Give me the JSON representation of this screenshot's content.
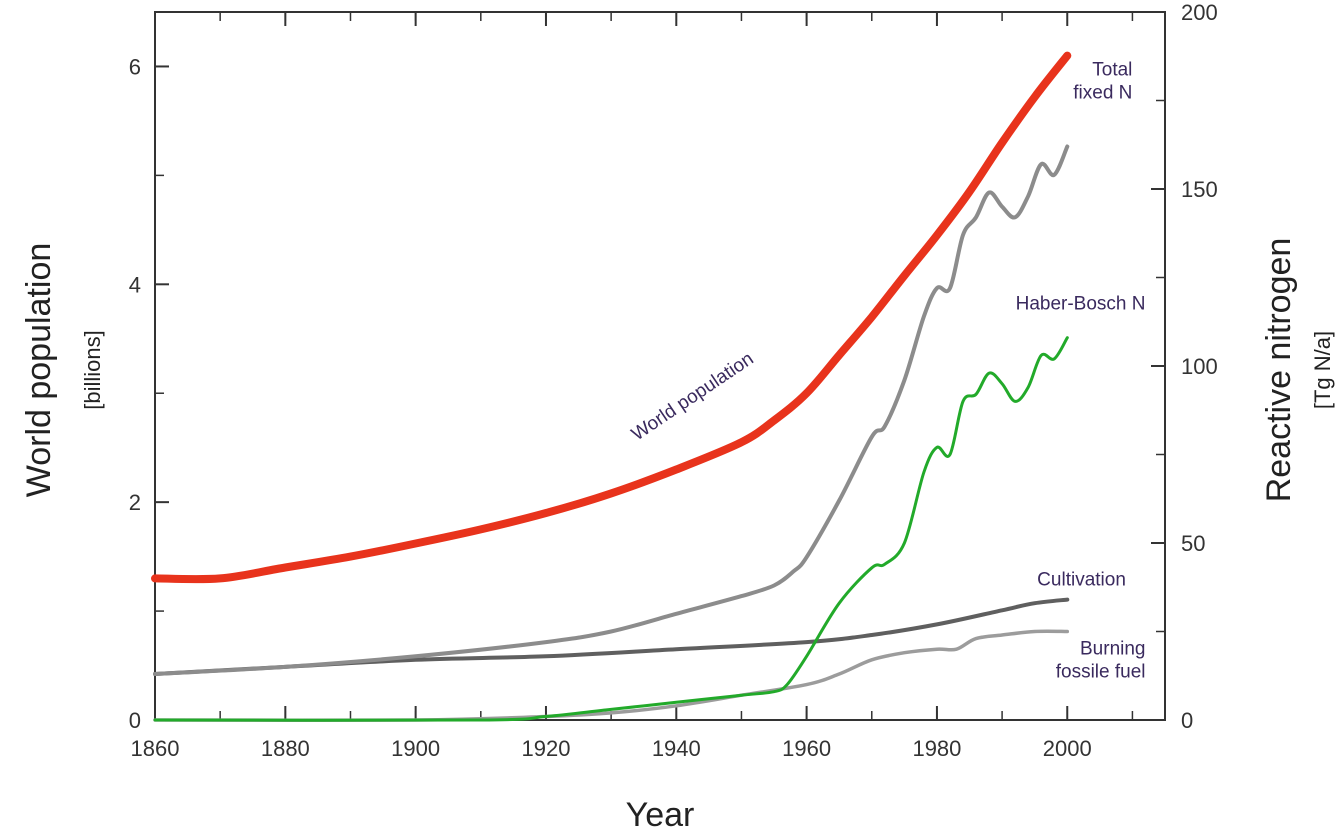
{
  "chart_data": {
    "type": "line",
    "title": "",
    "xlabel": "Year",
    "ylabel_left": "World population",
    "ylabel_left_unit": "[billions]",
    "ylabel_right": "Reactive nitrogen",
    "ylabel_right_unit": "[Tg N/a]",
    "xlim": [
      1860,
      2015
    ],
    "ylim_left": [
      0,
      6.5
    ],
    "ylim_right": [
      0,
      200
    ],
    "x_ticks": [
      1860,
      1880,
      1900,
      1920,
      1940,
      1960,
      1980,
      2000
    ],
    "y_left_ticks": [
      0,
      2,
      4,
      6
    ],
    "y_right_ticks": [
      0,
      50,
      100,
      150,
      200
    ],
    "grid": false,
    "legend": "none",
    "series": [
      {
        "name": "World population",
        "axis": "left",
        "color": "#e8331c",
        "label_lines": [
          "World population"
        ],
        "x": [
          1860,
          1870,
          1880,
          1890,
          1900,
          1910,
          1920,
          1930,
          1940,
          1950,
          1955,
          1960,
          1965,
          1970,
          1975,
          1980,
          1985,
          1990,
          1995,
          2000
        ],
        "y": [
          1.3,
          1.3,
          1.4,
          1.5,
          1.62,
          1.75,
          1.9,
          2.08,
          2.3,
          2.55,
          2.75,
          3.0,
          3.35,
          3.7,
          4.08,
          4.45,
          4.85,
          5.3,
          5.72,
          6.1
        ]
      },
      {
        "name": "Total fixed N",
        "axis": "right",
        "color": "#8c8c8c",
        "label_lines": [
          "Total",
          "fixed N"
        ],
        "x": [
          1860,
          1880,
          1900,
          1920,
          1930,
          1940,
          1950,
          1955,
          1958,
          1960,
          1965,
          1970,
          1972,
          1975,
          1978,
          1980,
          1982,
          1984,
          1986,
          1988,
          1990,
          1992,
          1994,
          1996,
          1998,
          2000
        ],
        "y": [
          13,
          15,
          18,
          22,
          25,
          30,
          35,
          38,
          42,
          46,
          62,
          80,
          83,
          96,
          114,
          122,
          122,
          137,
          142,
          149,
          145,
          142,
          148,
          157,
          154,
          162
        ]
      },
      {
        "name": "Haber-Bosch N",
        "axis": "right",
        "color": "#22aa2a",
        "label_lines": [
          "Haber-Bosch N"
        ],
        "x": [
          1860,
          1910,
          1920,
          1930,
          1940,
          1950,
          1955,
          1957,
          1960,
          1965,
          1970,
          1972,
          1975,
          1978,
          1980,
          1982,
          1984,
          1986,
          1988,
          1990,
          1992,
          1994,
          1996,
          1998,
          2000
        ],
        "y": [
          0,
          0,
          1,
          3,
          5,
          7,
          8,
          10,
          18,
          33,
          43,
          44,
          50,
          70,
          77,
          75,
          90,
          92,
          98,
          95,
          90,
          94,
          103,
          102,
          108
        ]
      },
      {
        "name": "Cultivation",
        "axis": "right",
        "color": "#5f5f5f",
        "label_lines": [
          "Cultivation"
        ],
        "x": [
          1860,
          1880,
          1900,
          1920,
          1940,
          1960,
          1970,
          1980,
          1990,
          1995,
          2000
        ],
        "y": [
          13,
          15,
          17,
          18,
          20,
          22,
          24,
          27,
          31,
          33,
          34
        ]
      },
      {
        "name": "Burning fossile fuel",
        "axis": "right",
        "color": "#9c9c9c",
        "label_lines": [
          "Burning",
          "fossile fuel"
        ],
        "x": [
          1860,
          1900,
          1920,
          1930,
          1940,
          1950,
          1960,
          1965,
          1970,
          1975,
          1980,
          1983,
          1986,
          1990,
          1995,
          2000
        ],
        "y": [
          0,
          0,
          1,
          2,
          4,
          7,
          10,
          13,
          17,
          19,
          20,
          20,
          23,
          24,
          25,
          25
        ]
      }
    ]
  },
  "colors": {
    "axis": "#333333",
    "annotation": "#3a2a5e"
  }
}
